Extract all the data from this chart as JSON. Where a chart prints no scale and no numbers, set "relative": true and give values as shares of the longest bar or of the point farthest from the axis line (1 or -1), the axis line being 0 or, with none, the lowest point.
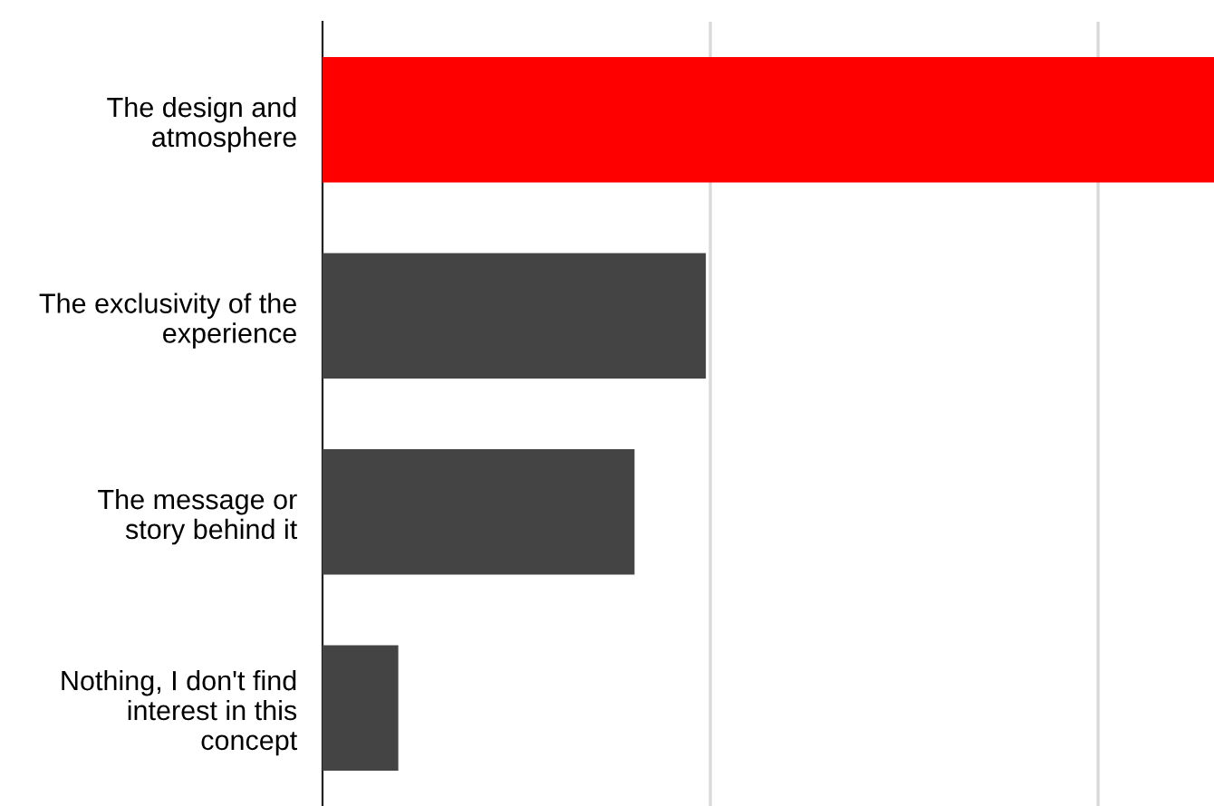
{
  "chart_data": {
    "type": "bar",
    "orientation": "horizontal",
    "relative": true,
    "categories": [
      "The design and\natmosphere",
      "The exclusivity of the\nexperience",
      "The message or\nstory behind it",
      "Nothing, I don't find\ninterest in this\nconcept"
    ],
    "values": [
      1,
      0.43,
      0.35,
      0.085
    ],
    "colors": [
      "#ff0000",
      "#444444",
      "#444444",
      "#444444"
    ],
    "ref_lines": [
      {
        "axis": "x",
        "value": 0.435,
        "color": "#d9d9d9"
      },
      {
        "axis": "x",
        "value": 0.87,
        "color": "#d9d9d9"
      }
    ],
    "tick_labels": "y"
  }
}
